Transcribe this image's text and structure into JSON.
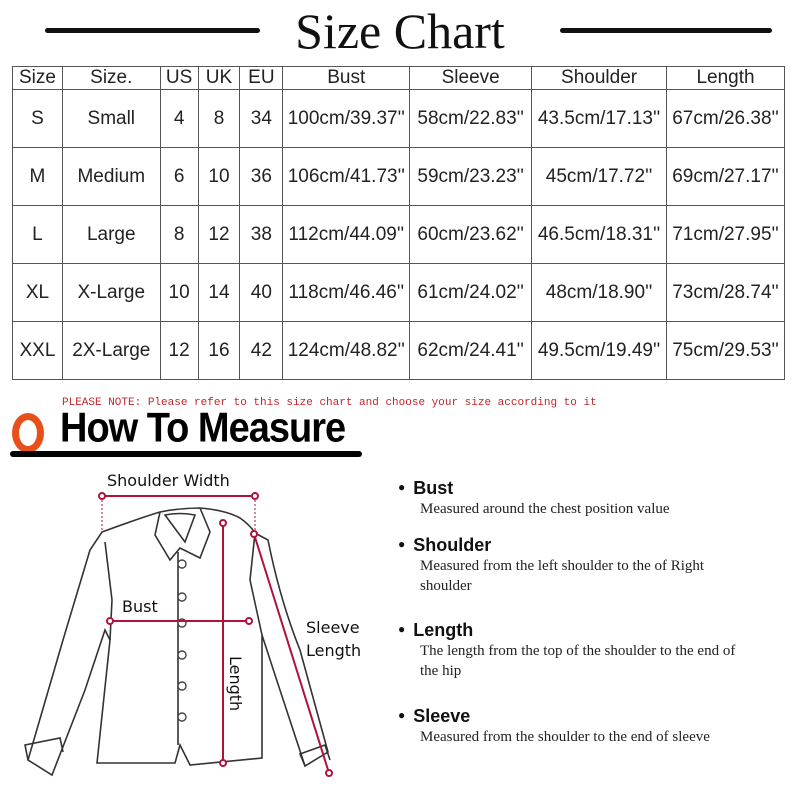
{
  "title": "Size Chart",
  "table": {
    "headers": [
      "Size",
      "Size.",
      "US",
      "UK",
      "EU",
      "Bust",
      "Sleeve",
      "Shoulder",
      "Length"
    ],
    "rows": [
      [
        "S",
        "Small",
        "4",
        "8",
        "34",
        "100cm/39.37''",
        "58cm/22.83''",
        "43.5cm/17.13''",
        "67cm/26.38''"
      ],
      [
        "M",
        "Medium",
        "6",
        "10",
        "36",
        "106cm/41.73''",
        "59cm/23.23''",
        "45cm/17.72''",
        "69cm/27.17''"
      ],
      [
        "L",
        "Large",
        "8",
        "12",
        "38",
        "112cm/44.09''",
        "60cm/23.62''",
        "46.5cm/18.31''",
        "71cm/27.95''"
      ],
      [
        "XL",
        "X-Large",
        "10",
        "14",
        "40",
        "118cm/46.46''",
        "61cm/24.02''",
        "48cm/18.90''",
        "73cm/28.74''"
      ],
      [
        "XXL",
        "2X-Large",
        "12",
        "16",
        "42",
        "124cm/48.82''",
        "62cm/24.41''",
        "49.5cm/19.49''",
        "75cm/29.53''"
      ]
    ]
  },
  "note": "PLEASE NOTE: Please refer to this size chart and choose your size according to it",
  "measure_title": "How To Measure",
  "diagram": {
    "shoulder": "Shoulder Width",
    "bust": "Bust",
    "sleeve1": "Sleeve",
    "sleeve2": "Length",
    "length": "Length"
  },
  "items": [
    {
      "title": "Bust",
      "desc": "Measured around the chest position value"
    },
    {
      "title": "Shoulder",
      "desc": "Measured from the left shoulder to the of Right shoulder"
    },
    {
      "title": "Length",
      "desc": "The length from the top of the shoulder to the end of the hip"
    },
    {
      "title": "Sleeve",
      "desc": "Measured from the shoulder to the end of sleeve"
    }
  ],
  "colors": {
    "accent": "#e8501a",
    "measure_line": "#b0123a",
    "note": "#c0272d"
  }
}
